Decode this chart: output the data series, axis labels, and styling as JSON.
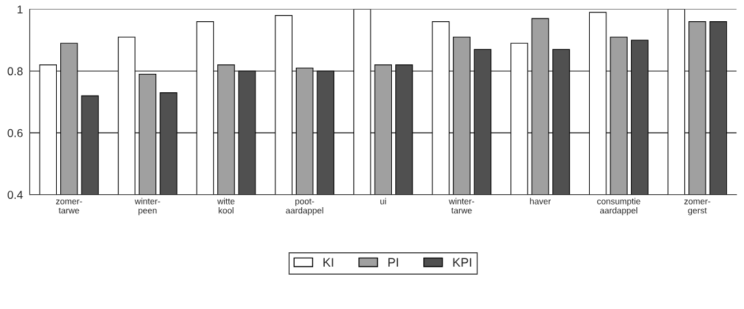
{
  "chart_data": {
    "type": "bar",
    "categories": [
      "zomer-\ntarwe",
      "winter-\npeen",
      "witte\nkool",
      "poot-\naardappel",
      "ui",
      "winter-\ntarwe",
      "haver",
      "consumptie\naardappel",
      "zomer-\ngerst"
    ],
    "series": [
      {
        "name": "KI",
        "color": "#ffffff",
        "values": [
          0.82,
          0.91,
          0.96,
          0.98,
          1.0,
          0.96,
          0.89,
          0.99,
          1.0
        ]
      },
      {
        "name": "PI",
        "color": "#a0a0a0",
        "values": [
          0.89,
          0.79,
          0.82,
          0.81,
          0.82,
          0.91,
          0.97,
          0.91,
          0.96
        ]
      },
      {
        "name": "KPI",
        "color": "#505050",
        "values": [
          0.72,
          0.73,
          0.8,
          0.8,
          0.82,
          0.87,
          0.87,
          0.9,
          0.96
        ]
      }
    ],
    "ylim": [
      0.4,
      1
    ],
    "yticks": [
      0.4,
      0.6,
      0.8,
      1
    ],
    "grid": "y",
    "legend": "bottom"
  }
}
